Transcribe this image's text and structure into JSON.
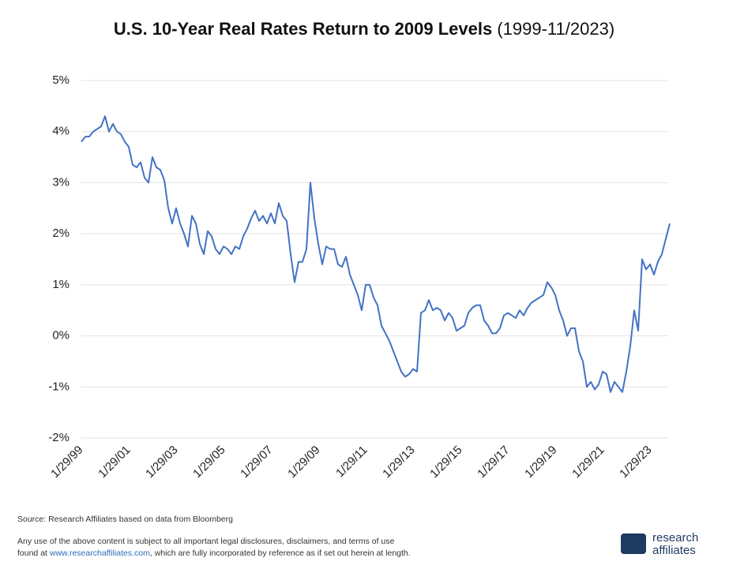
{
  "chart_data": {
    "type": "line",
    "title": "U.S. 10-Year Real Rates Return to 2009 Levels",
    "subtitle": "(1999-11/2023)",
    "categories": [
      "1/29/99",
      null,
      null,
      null,
      null,
      null,
      null,
      null,
      null,
      null,
      null,
      null,
      "1/29/01",
      null,
      null,
      null,
      null,
      null,
      null,
      null,
      null,
      null,
      null,
      null,
      "1/29/03",
      null,
      null,
      null,
      null,
      null,
      null,
      null,
      null,
      null,
      null,
      null,
      "1/29/05",
      null,
      null,
      null,
      null,
      null,
      null,
      null,
      null,
      null,
      null,
      null,
      "1/29/07",
      null,
      null,
      null,
      null,
      null,
      null,
      null,
      null,
      null,
      null,
      null,
      "1/29/09",
      null,
      null,
      null,
      null,
      null,
      null,
      null,
      null,
      null,
      null,
      null,
      "1/29/11",
      null,
      null,
      null,
      null,
      null,
      null,
      null,
      null,
      null,
      null,
      null,
      "1/29/13",
      null,
      null,
      null,
      null,
      null,
      null,
      null,
      null,
      null,
      null,
      null,
      "1/29/15",
      null,
      null,
      null,
      null,
      null,
      null,
      null,
      null,
      null,
      null,
      null,
      "1/29/17",
      null,
      null,
      null,
      null,
      null,
      null,
      null,
      null,
      null,
      null,
      null,
      "1/29/19",
      null,
      null,
      null,
      null,
      null,
      null,
      null,
      null,
      null,
      null,
      null,
      "1/29/21",
      null,
      null,
      null,
      null,
      null,
      null,
      null,
      null,
      null,
      null,
      null,
      "1/29/23",
      null,
      null,
      null,
      null,
      null
    ],
    "values": [
      3.8,
      3.9,
      3.9,
      4.0,
      4.05,
      4.1,
      4.3,
      4.0,
      4.15,
      4.0,
      3.95,
      3.8,
      3.7,
      3.35,
      3.3,
      3.4,
      3.1,
      3.0,
      3.5,
      3.3,
      3.25,
      3.05,
      2.5,
      2.2,
      2.5,
      2.2,
      2.0,
      1.75,
      2.35,
      2.2,
      1.8,
      1.6,
      2.05,
      1.95,
      1.7,
      1.6,
      1.75,
      1.7,
      1.6,
      1.75,
      1.7,
      1.95,
      2.1,
      2.3,
      2.45,
      2.25,
      2.35,
      2.2,
      2.4,
      2.2,
      2.6,
      2.35,
      2.25,
      1.6,
      1.05,
      1.45,
      1.45,
      1.7,
      3.0,
      2.3,
      1.8,
      1.4,
      1.75,
      1.7,
      1.7,
      1.4,
      1.35,
      1.55,
      1.2,
      1.0,
      0.8,
      0.5,
      1.0,
      1.0,
      0.75,
      0.6,
      0.2,
      0.05,
      -0.1,
      -0.3,
      -0.5,
      -0.7,
      -0.8,
      -0.75,
      -0.65,
      -0.7,
      0.45,
      0.5,
      0.7,
      0.5,
      0.55,
      0.5,
      0.3,
      0.45,
      0.35,
      0.1,
      0.15,
      0.2,
      0.45,
      0.55,
      0.6,
      0.6,
      0.3,
      0.2,
      0.05,
      0.05,
      0.15,
      0.4,
      0.45,
      0.4,
      0.35,
      0.5,
      0.4,
      0.55,
      0.65,
      0.7,
      0.75,
      0.8,
      1.05,
      0.95,
      0.8,
      0.5,
      0.3,
      0.0,
      0.15,
      0.15,
      -0.3,
      -0.5,
      -1.0,
      -0.9,
      -1.05,
      -0.95,
      -0.7,
      -0.75,
      -1.1,
      -0.9,
      -1.0,
      -1.1,
      -0.7,
      -0.2,
      0.5,
      0.1,
      1.5,
      1.3,
      1.4,
      1.2,
      1.45,
      1.6,
      1.9,
      2.2
    ],
    "color": "#4472c4",
    "ylim": [
      -2,
      5
    ],
    "yticks": [
      {
        "value": -2,
        "label": "-2%"
      },
      {
        "value": -1,
        "label": "-1%"
      },
      {
        "value": 0,
        "label": "0%"
      },
      {
        "value": 1,
        "label": "1%"
      },
      {
        "value": 2,
        "label": "2%"
      },
      {
        "value": 3,
        "label": "3%"
      },
      {
        "value": 4,
        "label": "4%"
      },
      {
        "value": 5,
        "label": "5%"
      }
    ],
    "grid": true
  },
  "footer": {
    "source": "Source: Research Affiliates based on data from Bloomberg",
    "disclaimer_1": "Any use of the above content is subject to all important legal disclosures, disclaimers, and terms of use",
    "disclaimer_2a": "found at ",
    "link": "www.researchaffiliates.com",
    "disclaimer_2b": ", which are fully incorporated by reference as if set out herein at length.",
    "logo_1": "research",
    "logo_2": "affiliates"
  }
}
